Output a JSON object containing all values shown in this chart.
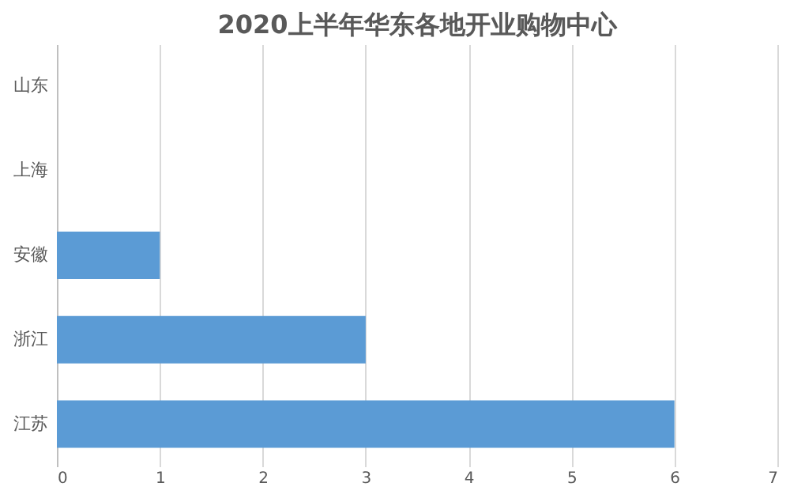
{
  "chart_data": {
    "type": "bar",
    "orientation": "horizontal",
    "title": "2020上半年华东各地开业购物中心",
    "categories": [
      "山东",
      "上海",
      "安徽",
      "浙江",
      "江苏"
    ],
    "values": [
      0,
      0,
      1,
      3,
      6
    ],
    "color": "#5b9bd5",
    "xlim": [
      0,
      7
    ],
    "xticks": [
      0,
      1,
      2,
      3,
      4,
      5,
      6,
      7
    ],
    "grid": "x"
  }
}
